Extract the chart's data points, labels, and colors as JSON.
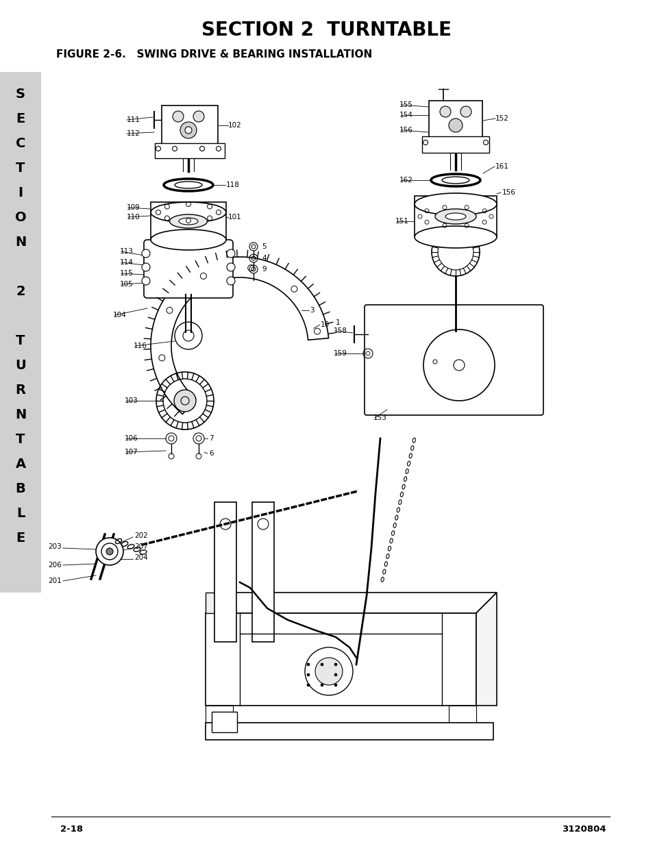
{
  "title": "SECTION 2  TURNTABLE",
  "figure_label": "FIGURE 2-6.   SWING DRIVE & BEARING INSTALLATION",
  "page_number": "2-18",
  "doc_number": "3120804",
  "sidebar_bg": "#d0d0d0",
  "bg_color": "#ffffff",
  "title_fontsize": 20,
  "figure_label_fontsize": 11,
  "footer_fontsize": 10,
  "sidebar_fontsize": 14,
  "sidebar_chars": [
    "S",
    "E",
    "C",
    "T",
    "I",
    "O",
    "N",
    " ",
    "2",
    " ",
    "T",
    "U",
    "R",
    "N",
    "T",
    "A",
    "B",
    "L",
    "E"
  ]
}
